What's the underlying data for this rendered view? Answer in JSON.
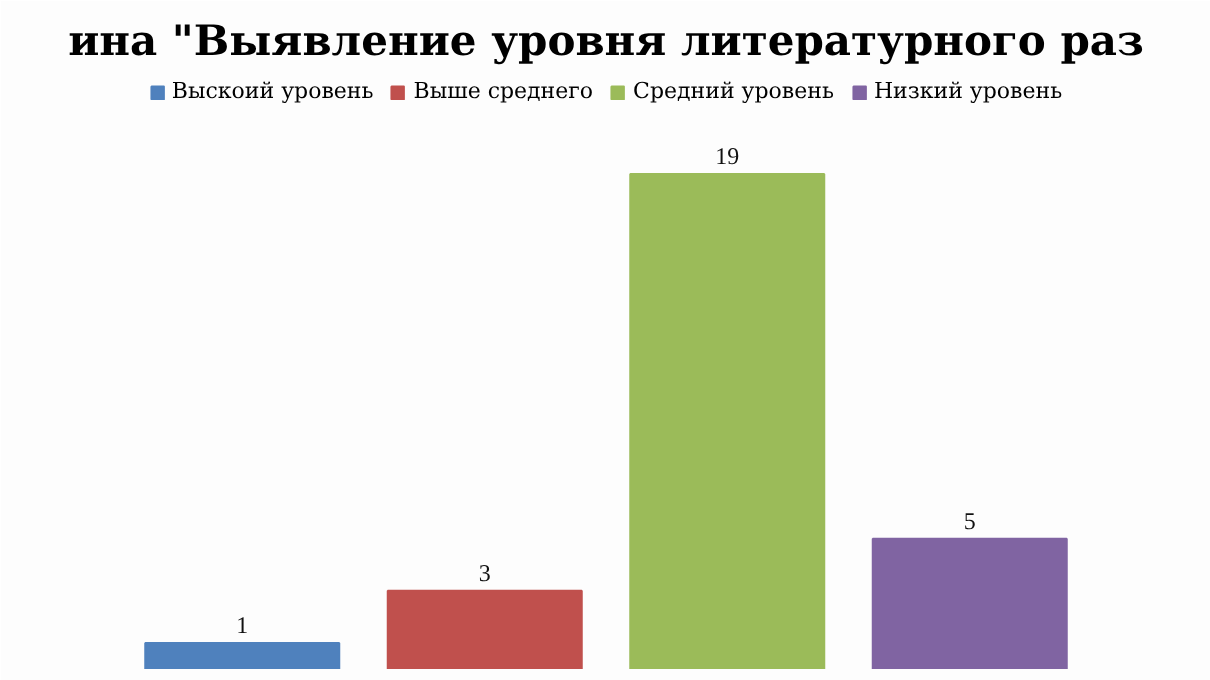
{
  "chart_data": {
    "type": "bar",
    "title": "ина \"Выявление уровня литературного раз",
    "categories": [
      null
    ],
    "series": [
      {
        "name": "Выскоий уровень",
        "color": "#4f81bd",
        "values": [
          1
        ]
      },
      {
        "name": "Выше среднего",
        "color": "#c0504d",
        "values": [
          3
        ]
      },
      {
        "name": "Средний уровень",
        "color": "#9bbb59",
        "values": [
          19
        ]
      },
      {
        "name": "Низкий уровень",
        "color": "#8064a2",
        "values": [
          5
        ]
      }
    ],
    "data_labels": true,
    "legend": "top"
  }
}
